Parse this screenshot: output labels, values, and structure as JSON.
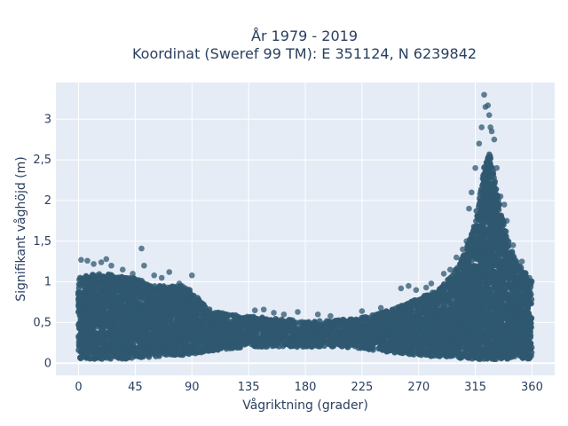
{
  "chart_data": {
    "type": "scatter",
    "title_line1": "År 1979 - 2019",
    "title_line2": "Koordinat (Sweref 99 TM): E 351124, N 6239842",
    "xlabel": "Vågriktning (grader)",
    "ylabel": "Signifikant våghöjd (m)",
    "xlim": [
      -18,
      378
    ],
    "ylim": [
      -0.15,
      3.45
    ],
    "xticks": [
      0,
      45,
      90,
      135,
      180,
      225,
      270,
      315,
      360
    ],
    "xtick_labels": [
      "0",
      "45",
      "90",
      "135",
      "180",
      "225",
      "270",
      "315",
      "360"
    ],
    "yticks": [
      0,
      0.5,
      1,
      1.5,
      2,
      2.5,
      3
    ],
    "ytick_labels": [
      "0",
      "0,5",
      "1",
      "1,5",
      "2",
      "2,5",
      "3"
    ],
    "grid": true,
    "marker_color": "#2f5870",
    "plot_background": "#e5ecf6",
    "envelope": {
      "x": [
        0,
        10,
        20,
        30,
        45,
        60,
        75,
        85,
        95,
        105,
        120,
        135,
        150,
        165,
        180,
        195,
        210,
        225,
        240,
        255,
        270,
        285,
        295,
        305,
        312,
        318,
        322,
        326,
        330,
        335,
        340,
        345,
        350,
        355,
        360
      ],
      "y_max": [
        1.05,
        1.1,
        1.1,
        1.08,
        1.05,
        0.95,
        0.95,
        0.95,
        0.8,
        0.65,
        0.6,
        0.58,
        0.56,
        0.54,
        0.52,
        0.52,
        0.54,
        0.56,
        0.62,
        0.7,
        0.8,
        0.9,
        1.05,
        1.3,
        1.6,
        2.0,
        2.4,
        2.6,
        2.3,
        1.9,
        1.55,
        1.35,
        1.2,
        1.1,
        1.0
      ],
      "y_min": [
        0.05,
        0.05,
        0.05,
        0.05,
        0.06,
        0.08,
        0.1,
        0.1,
        0.12,
        0.15,
        0.18,
        0.2,
        0.2,
        0.2,
        0.2,
        0.2,
        0.2,
        0.18,
        0.15,
        0.12,
        0.1,
        0.08,
        0.08,
        0.06,
        0.05,
        0.05,
        0.05,
        0.05,
        0.05,
        0.05,
        0.05,
        0.05,
        0.05,
        0.05,
        0.05
      ]
    },
    "outliers": [
      {
        "x": 2,
        "y": 1.27
      },
      {
        "x": 7,
        "y": 1.26
      },
      {
        "x": 12,
        "y": 1.22
      },
      {
        "x": 18,
        "y": 1.24
      },
      {
        "x": 22,
        "y": 1.28
      },
      {
        "x": 26,
        "y": 1.2
      },
      {
        "x": 35,
        "y": 1.15
      },
      {
        "x": 43,
        "y": 1.1
      },
      {
        "x": 50,
        "y": 1.41
      },
      {
        "x": 52,
        "y": 1.2
      },
      {
        "x": 60,
        "y": 1.08
      },
      {
        "x": 66,
        "y": 1.05
      },
      {
        "x": 72,
        "y": 1.12
      },
      {
        "x": 90,
        "y": 1.08
      },
      {
        "x": 80,
        "y": 0.98
      },
      {
        "x": 140,
        "y": 0.65
      },
      {
        "x": 147,
        "y": 0.66
      },
      {
        "x": 155,
        "y": 0.62
      },
      {
        "x": 163,
        "y": 0.6
      },
      {
        "x": 174,
        "y": 0.63
      },
      {
        "x": 190,
        "y": 0.6
      },
      {
        "x": 200,
        "y": 0.58
      },
      {
        "x": 225,
        "y": 0.64
      },
      {
        "x": 240,
        "y": 0.68
      },
      {
        "x": 256,
        "y": 0.92
      },
      {
        "x": 262,
        "y": 0.95
      },
      {
        "x": 268,
        "y": 0.9
      },
      {
        "x": 276,
        "y": 0.93
      },
      {
        "x": 280,
        "y": 0.98
      },
      {
        "x": 290,
        "y": 1.1
      },
      {
        "x": 295,
        "y": 1.15
      },
      {
        "x": 300,
        "y": 1.3
      },
      {
        "x": 305,
        "y": 1.4
      },
      {
        "x": 308,
        "y": 1.5
      },
      {
        "x": 310,
        "y": 1.9
      },
      {
        "x": 312,
        "y": 2.1
      },
      {
        "x": 315,
        "y": 2.4
      },
      {
        "x": 318,
        "y": 2.7
      },
      {
        "x": 320,
        "y": 2.9
      },
      {
        "x": 322,
        "y": 3.3
      },
      {
        "x": 323,
        "y": 3.15
      },
      {
        "x": 325,
        "y": 3.17
      },
      {
        "x": 326,
        "y": 3.05
      },
      {
        "x": 327,
        "y": 2.9
      },
      {
        "x": 328,
        "y": 2.85
      },
      {
        "x": 330,
        "y": 2.75
      },
      {
        "x": 332,
        "y": 2.4
      },
      {
        "x": 335,
        "y": 2.05
      },
      {
        "x": 338,
        "y": 1.95
      },
      {
        "x": 340,
        "y": 1.75
      },
      {
        "x": 345,
        "y": 1.45
      },
      {
        "x": 352,
        "y": 1.25
      },
      {
        "x": 355,
        "y": 1.1
      },
      {
        "x": 358,
        "y": 1.05
      }
    ]
  }
}
